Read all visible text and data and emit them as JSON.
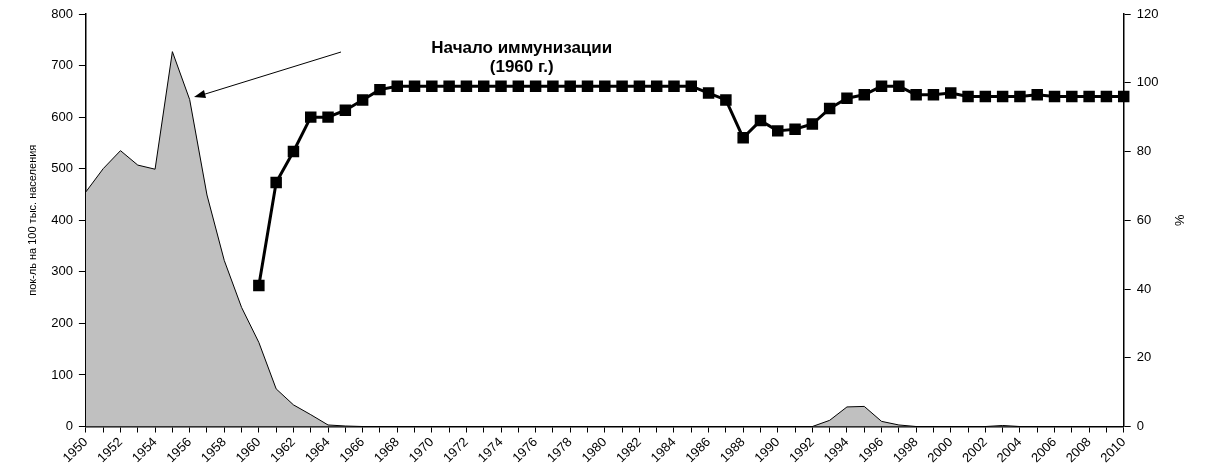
{
  "chart_data": {
    "type": "area",
    "ylabel": "пок-ль на 100 тыс. населения",
    "y2label": "%",
    "categories": [
      "1950",
      null,
      "1952",
      null,
      "1954",
      null,
      "1956",
      null,
      "1958",
      null,
      "1960",
      null,
      "1962",
      null,
      "1964",
      null,
      "1966",
      null,
      "1968",
      null,
      "1970",
      null,
      "1972",
      null,
      "1974",
      null,
      "1976",
      null,
      "1978",
      null,
      "1980",
      null,
      "1982",
      null,
      "1984",
      null,
      "1986",
      null,
      "1988",
      null,
      "1990",
      null,
      "1992",
      null,
      "1994",
      null,
      "1996",
      null,
      "1998",
      null,
      "2000",
      null,
      "2002",
      null,
      "2004",
      null,
      "2006",
      null,
      "2008",
      null,
      "2010"
    ],
    "series": [
      {
        "color": "#c0c0c0",
        "values": [
          455,
          500,
          535,
          507,
          499,
          727,
          634,
          449,
          322,
          231,
          163,
          73,
          42,
          23,
          3,
          1,
          0,
          0,
          0,
          0,
          0,
          0,
          0,
          0,
          0,
          0,
          0,
          0,
          0,
          0,
          0,
          0,
          0,
          0,
          0,
          0,
          0,
          0,
          0,
          0,
          0,
          0,
          0,
          12,
          38,
          39,
          10,
          3,
          0,
          0,
          0,
          0,
          0,
          2,
          0,
          0,
          0,
          0,
          0,
          0,
          0
        ]
      },
      {
        "type": "line",
        "axis": "y2",
        "color": "#000000",
        "marker": "square",
        "values": [
          null,
          null,
          null,
          null,
          null,
          null,
          null,
          null,
          null,
          null,
          41,
          71,
          80,
          90,
          90,
          92,
          95,
          98,
          99,
          99,
          99,
          99,
          99,
          99,
          99,
          99,
          99,
          99,
          99,
          99,
          99,
          99,
          99,
          99,
          99,
          99,
          97,
          95,
          84,
          89,
          86,
          86.5,
          88,
          92.5,
          95.5,
          96.5,
          99,
          99,
          96.5,
          96.5,
          97,
          96,
          96,
          96,
          96,
          96.5,
          96,
          96,
          96,
          96,
          96
        ]
      }
    ],
    "ylim": [
      0,
      800
    ],
    "yticks": [
      0,
      100,
      200,
      300,
      400,
      500,
      600,
      700,
      800
    ],
    "y2lim": [
      0,
      120
    ],
    "y2ticks": [
      0,
      20,
      40,
      60,
      80,
      100,
      120
    ],
    "annotations": [
      "Начало иммунизации\n(1960 г.)"
    ],
    "grid": false,
    "legend": false
  }
}
